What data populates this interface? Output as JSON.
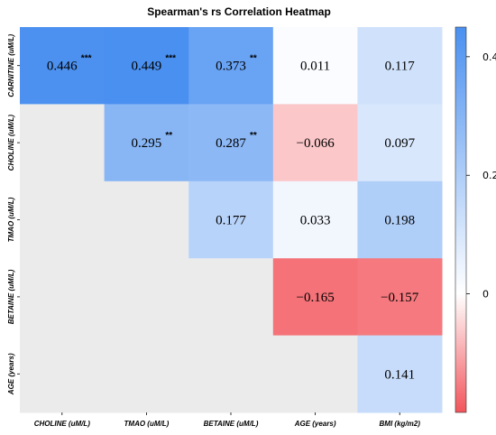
{
  "chart_data": {
    "type": "heatmap",
    "title": "Spearman's rs Correlation Heatmap",
    "row_labels": [
      "CARNITINE (uM/L)",
      "CHOLINE (uM/L)",
      "TMAO (uM/L)",
      "BETAINE (uM/L)",
      "AGE (years)"
    ],
    "col_labels": [
      "CHOLINE (uM/L)",
      "TMAO (uM/L)",
      "BETAINE (uM/L)",
      "AGE (years)",
      "BMI (kg/m2)"
    ],
    "cells": [
      [
        {
          "value": 0.446,
          "label": "0.446",
          "sig": "***"
        },
        {
          "value": 0.449,
          "label": "0.449",
          "sig": "***"
        },
        {
          "value": 0.373,
          "label": "0.373",
          "sig": "**"
        },
        {
          "value": 0.011,
          "label": "0.011",
          "sig": ""
        },
        {
          "value": 0.117,
          "label": "0.117",
          "sig": ""
        }
      ],
      [
        null,
        {
          "value": 0.295,
          "label": "0.295",
          "sig": "**"
        },
        {
          "value": 0.287,
          "label": "0.287",
          "sig": "**"
        },
        {
          "value": -0.066,
          "label": "−0.066",
          "sig": ""
        },
        {
          "value": 0.097,
          "label": "0.097",
          "sig": ""
        }
      ],
      [
        null,
        null,
        {
          "value": 0.177,
          "label": "0.177",
          "sig": ""
        },
        {
          "value": 0.033,
          "label": "0.033",
          "sig": ""
        },
        {
          "value": 0.198,
          "label": "0.198",
          "sig": ""
        }
      ],
      [
        null,
        null,
        null,
        {
          "value": -0.165,
          "label": "−0.165",
          "sig": ""
        },
        {
          "value": -0.157,
          "label": "−0.157",
          "sig": ""
        }
      ],
      [
        null,
        null,
        null,
        null,
        {
          "value": 0.141,
          "label": "0.141",
          "sig": ""
        }
      ]
    ],
    "colorbar": {
      "min": -0.2,
      "max": 0.45,
      "ticks": [
        {
          "value": 0.4,
          "label": "0.4"
        },
        {
          "value": 0.2,
          "label": "0.2"
        },
        {
          "value": 0,
          "label": "0"
        }
      ],
      "neg_color": "#f2545b",
      "mid_color": "#ffffff",
      "pos_color": "#4a90f0",
      "empty_color": "#ebebeb"
    }
  }
}
